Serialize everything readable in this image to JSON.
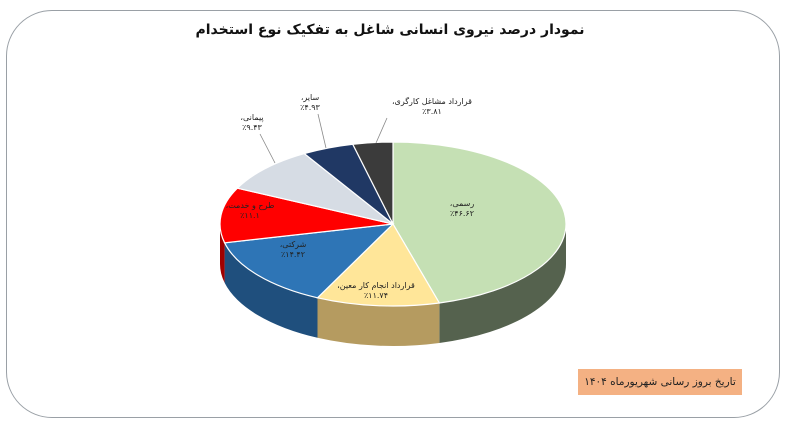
{
  "chart_data": {
    "type": "pie",
    "title": "نمودار درصد نیروی انسانی شاغل به تفکیک نوع استخدام",
    "slices": [
      {
        "label": "رسمی،",
        "value": 46.62,
        "value_text": "٪۴۶.۶۲",
        "color": "#c5e0b4",
        "side": "#55624e"
      },
      {
        "label": "قرارداد انجام کار معین،",
        "value": 11.74,
        "value_text": "٪۱۱.۷۴",
        "color": "#ffe699",
        "side": "#b59b60"
      },
      {
        "label": "شرکتی،",
        "value": 14.42,
        "value_text": "٪۱۴.۴۲",
        "color": "#2e75b6",
        "side": "#1f4f7d"
      },
      {
        "label": "طرح و خدمت،",
        "value": 11.1,
        "value_text": "٪۱۱.۱",
        "color": "#ff0000",
        "side": "#a00000"
      },
      {
        "label": "پیمانی،",
        "value": 9.43,
        "value_text": "٪۹.۴۳",
        "color": "#d6dce4",
        "side": "#8e959c"
      },
      {
        "label": "سایر،",
        "value": 4.93,
        "value_text": "٪۴.۹۳",
        "color": "#203864",
        "side": "#122241"
      },
      {
        "label": "قرارداد مشاغل کارگری،",
        "value": 3.81,
        "value_text": "٪۳.۸۱",
        "color": "#3b3b3b",
        "side": "#222222"
      }
    ],
    "legend": "none"
  },
  "stamp_text": "تاریخ بروز رسانی شهریورماه ۱۴۰۴"
}
